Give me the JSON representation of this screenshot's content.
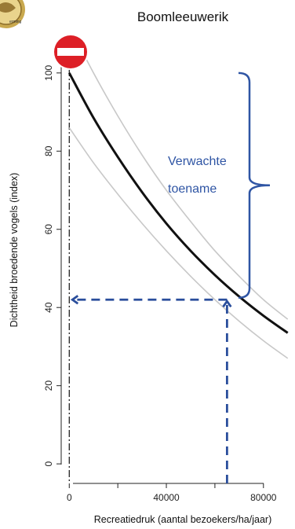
{
  "chart_data": {
    "type": "line",
    "title": "Boomleeuwerik",
    "xlabel": "Recreatiedruk (aantal bezoekers/ha/jaar)",
    "ylabel": "Dichtheid broedende vogels (index)",
    "xlim": [
      -3000,
      93000
    ],
    "ylim": [
      -5,
      107
    ],
    "xticks": [
      0,
      40000,
      80000
    ],
    "xtick_labels": [
      "0",
      "40000",
      "80000"
    ],
    "yticks": [
      0,
      20,
      40,
      60,
      80,
      100
    ],
    "ytick_labels": [
      "0",
      "20",
      "40",
      "60",
      "80",
      "100"
    ],
    "grid": false,
    "series": [
      {
        "role": "fit",
        "color": "#111111",
        "x": [
          0,
          10000,
          20000,
          30000,
          40000,
          50000,
          60000,
          70000,
          80000,
          90000
        ],
        "y": [
          100,
          88.5,
          78.5,
          69.5,
          61.5,
          54.5,
          48.3,
          42.8,
          37.9,
          33.5
        ]
      },
      {
        "role": "upper-band",
        "color": "#c8c8c8",
        "x": [
          0,
          10000,
          20000,
          30000,
          40000,
          50000,
          60000,
          70000,
          80000,
          90000
        ],
        "y": [
          112,
          100,
          89,
          79,
          70,
          62,
          54.5,
          48,
          42,
          37
        ]
      },
      {
        "role": "lower-band",
        "color": "#c8c8c8",
        "x": [
          0,
          10000,
          20000,
          30000,
          40000,
          50000,
          60000,
          70000,
          80000,
          90000
        ],
        "y": [
          86,
          77,
          69,
          61.5,
          54.5,
          48,
          42,
          36.5,
          31.5,
          27
        ]
      }
    ],
    "reference_vline_x": 0,
    "current_point": {
      "x": 65000,
      "y": 42
    },
    "bracket_range": [
      42.5,
      100
    ],
    "annotation": {
      "lines": [
        "Verwachte",
        "toename"
      ],
      "color": "#2f55a4"
    },
    "dashed_color": "#2a4e9c",
    "no_entry_sign_color": "#dd1f26"
  },
  "logo": {
    "text": "erming"
  }
}
